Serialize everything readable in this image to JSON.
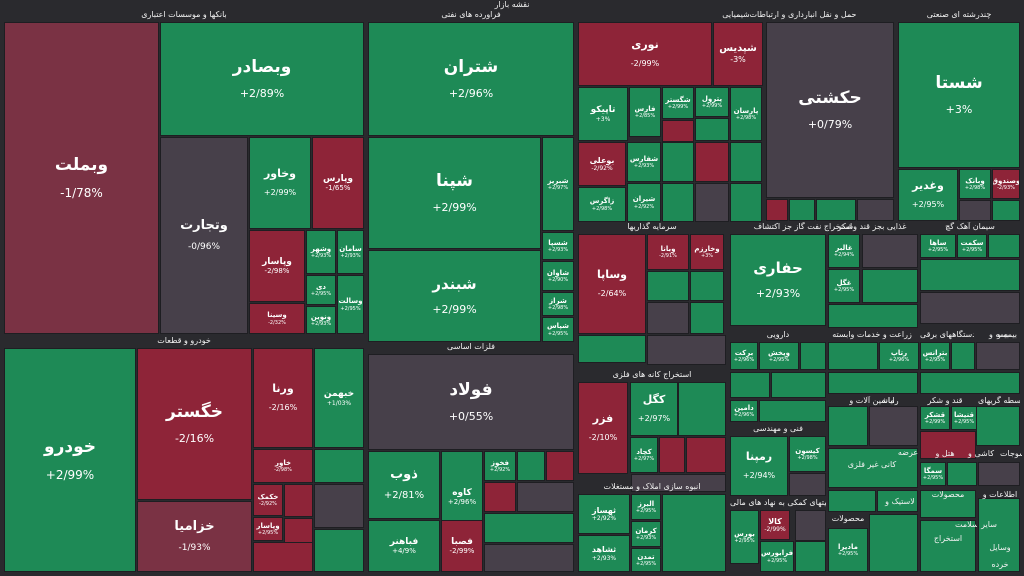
{
  "title": "نقشه بازار",
  "sectors": [
    {
      "label": "بانکها و موسسات اعتباری"
    },
    {
      "label": "فراورده های نفتی"
    },
    {
      "label": "شیمیایی"
    },
    {
      "label": "حمل و نقل انبارداری و ارتباطات"
    },
    {
      "label": "چندرشته ای صنعتی"
    },
    {
      "label": "سرمایه گذاریها"
    },
    {
      "label": "استخراج نفت گاز جز اکتشاف"
    },
    {
      "label": "غذایی بجز قند وشکر"
    },
    {
      "label": "سیمان آهک گچ"
    },
    {
      "label": "خودرو و قطعات"
    },
    {
      "label": "فلزات اساسی"
    },
    {
      "label": "استخراج کانه های فلزی"
    },
    {
      "label": "دارویی"
    },
    {
      "label": "زراعت و خدمات وابسته"
    },
    {
      "label": "دستگاههای برقی"
    },
    {
      "label": "بیمه و"
    },
    {
      "label": "فنی و مهندسی"
    },
    {
      "label": "انبوه سازی املاک و مستغلات"
    },
    {
      "label": "فعالیتهای کمکی به نهاد های مالی"
    },
    {
      "label": "ماشین آلات و"
    },
    {
      "label": "قند و شکر"
    },
    {
      "label": "واسطه گریهای"
    },
    {
      "label": "کانی غیر فلزی"
    },
    {
      "label": "هتل و"
    },
    {
      "label": "کاشی و"
    },
    {
      "label": "منسوجات"
    },
    {
      "label": "اطلاعات و"
    },
    {
      "label": "محصولات"
    },
    {
      "label": "لاستیک و"
    },
    {
      "label": "محصولات"
    },
    {
      "label": "استخراج"
    },
    {
      "label": "سایر"
    },
    {
      "label": "سلامت"
    },
    {
      "label": "بیمه و"
    },
    {
      "label": "رایانه"
    },
    {
      "label": "عرضه"
    },
    {
      "label": "وسایل"
    },
    {
      "label": "خرده"
    }
  ],
  "tiles": [
    {
      "sym": "وبملت",
      "chg": "-1/78%"
    },
    {
      "sym": "وبصادر",
      "chg": "+2/89%"
    },
    {
      "sym": "وتجارت",
      "chg": "-0/96%"
    },
    {
      "sym": "وخاور",
      "chg": "+2/99%"
    },
    {
      "sym": "وپارس",
      "chg": "-1/65%"
    },
    {
      "sym": "وپاسار",
      "chg": "-2/98%"
    },
    {
      "sym": "وشهر",
      "chg": "+2/93%"
    },
    {
      "sym": "سامان",
      "chg": "+2/93%"
    },
    {
      "sym": "وسینا",
      "chg": "-2/32%"
    },
    {
      "sym": "دی",
      "chg": "+2/95%"
    },
    {
      "sym": "ونوین",
      "chg": "+2/93%"
    },
    {
      "sym": "وسالت",
      "chg": "+2/95%"
    },
    {
      "sym": "شتران",
      "chg": "+2/96%"
    },
    {
      "sym": "شپنا",
      "chg": "+2/99%"
    },
    {
      "sym": "شبندر",
      "chg": "+2/99%"
    },
    {
      "sym": "شبریز",
      "chg": "+2/97%"
    },
    {
      "sym": "شسپا",
      "chg": "+2/93%"
    },
    {
      "sym": "شاوان",
      "chg": "+2/90%"
    },
    {
      "sym": "شراز",
      "chg": "+2/98%"
    },
    {
      "sym": "شپاس",
      "chg": "+2/95%"
    },
    {
      "sym": "نوری",
      "chg": "-2/99%"
    },
    {
      "sym": "شپدیس",
      "chg": "-3%"
    },
    {
      "sym": "تاپیکو",
      "chg": "+3%"
    },
    {
      "sym": "فارس",
      "chg": "+2/85%"
    },
    {
      "sym": "شگستر",
      "chg": "+2/99%"
    },
    {
      "sym": "پترول",
      "chg": "+2/99%"
    },
    {
      "sym": "پارسان",
      "chg": "+2/98%"
    },
    {
      "sym": "بوعلی",
      "chg": "-2/92%"
    },
    {
      "sym": "شفارس",
      "chg": "+2/93%"
    },
    {
      "sym": "زاگرس",
      "chg": "+2/98%"
    },
    {
      "sym": "شیران",
      "chg": "+2/92%"
    },
    {
      "sym": "حکشتی",
      "chg": "+0/79%"
    },
    {
      "sym": "شستا",
      "chg": "+3%"
    },
    {
      "sym": "وغدیر",
      "chg": "+2/95%"
    },
    {
      "sym": "وبانک",
      "chg": "+2/98%"
    },
    {
      "sym": "وصندوق",
      "chg": "-2/93%"
    },
    {
      "sym": "وساپا",
      "chg": "-2/64%"
    },
    {
      "sym": "وبانا",
      "chg": "-2/91%"
    },
    {
      "sym": "وخارزم",
      "chg": "+3%"
    },
    {
      "sym": "حفاری",
      "chg": "+2/93%"
    },
    {
      "sym": "غالبر",
      "chg": "+2/94%"
    },
    {
      "sym": "غگل",
      "chg": "+2/95%"
    },
    {
      "sym": "ساها",
      "chg": "+2/95%"
    },
    {
      "sym": "سکمت",
      "chg": "+2/95%"
    },
    {
      "sym": "خودرو",
      "chg": "+2/99%"
    },
    {
      "sym": "خگستر",
      "chg": "-2/16%"
    },
    {
      "sym": "ورنا",
      "chg": "-2/16%"
    },
    {
      "sym": "خبهمن",
      "chg": "+1/03%"
    },
    {
      "sym": "خزامیا",
      "chg": "-1/93%"
    },
    {
      "sym": "خاور",
      "chg": "-2/98%"
    },
    {
      "sym": "خکمک",
      "chg": "-2/92%"
    },
    {
      "sym": "فولاد",
      "chg": "+0/55%"
    },
    {
      "sym": "ذوب",
      "chg": "+2/81%"
    },
    {
      "sym": "کاوه",
      "chg": "+2/96%"
    },
    {
      "sym": "فخوز",
      "chg": "+2/92%"
    },
    {
      "sym": "فباهنر",
      "chg": "+4/9%"
    },
    {
      "sym": "فصبا",
      "chg": "-2/99%"
    },
    {
      "sym": "کگل",
      "chg": "+2/97%"
    },
    {
      "sym": "فزر",
      "chg": "-2/10%"
    },
    {
      "sym": "کچاد",
      "chg": "+2/97%"
    },
    {
      "sym": "رمپنا",
      "chg": "+2/94%"
    },
    {
      "sym": "کیسون",
      "chg": "+2/98%"
    },
    {
      "sym": "وپاسار",
      "chg": "+2/95%"
    },
    {
      "sym": "ثهساز",
      "chg": "+2/92%"
    },
    {
      "sym": "ثشاهد",
      "chg": "+2/93%"
    },
    {
      "sym": "کالا",
      "chg": "-2/99%"
    },
    {
      "sym": "بورس",
      "chg": "+2/95%"
    },
    {
      "sym": "فرابورس",
      "chg": "+2/95%"
    },
    {
      "sym": "ماديرا",
      "chg": "+2/95%"
    },
    {
      "sym": "البرز",
      "chg": "+2/95%"
    },
    {
      "sym": "بركت",
      "chg": "+2/96%"
    },
    {
      "sym": "دامین",
      "chg": "+2/96%"
    },
    {
      "sym": "وپخش",
      "chg": "+2/95%"
    },
    {
      "sym": "رتاپ",
      "chg": "+2/96%"
    },
    {
      "sym": "بترانس",
      "chg": "+2/95%"
    },
    {
      "sym": "قشکر",
      "chg": "+2/99%"
    },
    {
      "sym": "قنیشا",
      "chg": "+2/95%"
    },
    {
      "sym": "سمگا",
      "chg": "+2/95%"
    },
    {
      "sym": "کرمان",
      "chg": "+2/93%"
    },
    {
      "sym": "تمدن",
      "chg": "+2/95%"
    }
  ]
}
